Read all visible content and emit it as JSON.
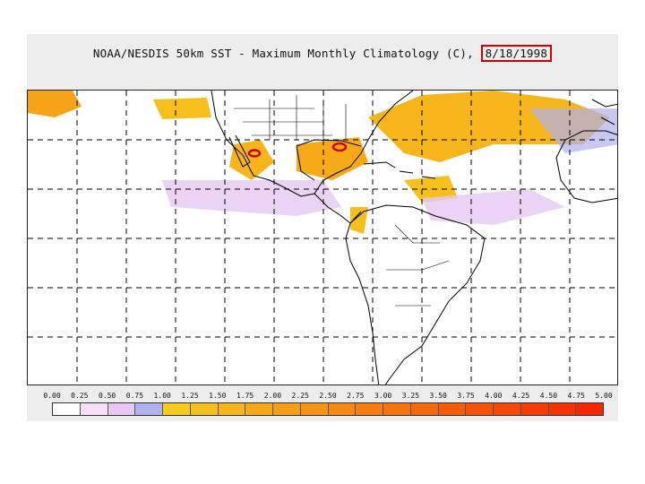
{
  "title": {
    "main": "NOAA/NESDIS 50km SST - Maximum Monthly Climatology (C),",
    "date": "8/18/1998"
  },
  "colors": {
    "map_background": "#ffffff",
    "coast": "#000000",
    "grid": "#000000",
    "highlight": "#d00000"
  },
  "scale": {
    "labels": [
      "0.00",
      "0.25",
      "0.50",
      "0.75",
      "1.00",
      "1.25",
      "1.50",
      "1.75",
      "2.00",
      "2.25",
      "2.50",
      "2.75",
      "3.00",
      "3.25",
      "3.50",
      "3.75",
      "4.00",
      "4.25",
      "4.50",
      "4.75",
      "5.00"
    ],
    "colors": [
      "#ffffff",
      "#f7e0f7",
      "#e6c8f2",
      "#b0b0ee",
      "#f6cb1e",
      "#f6c01c",
      "#f6b51a",
      "#f6aa18",
      "#f69f16",
      "#f69414",
      "#f68912",
      "#f67e10",
      "#f6730e",
      "#f6680c",
      "#f65d0a",
      "#f65208",
      "#f64706",
      "#f63c04",
      "#f63102",
      "#f62600"
    ]
  }
}
